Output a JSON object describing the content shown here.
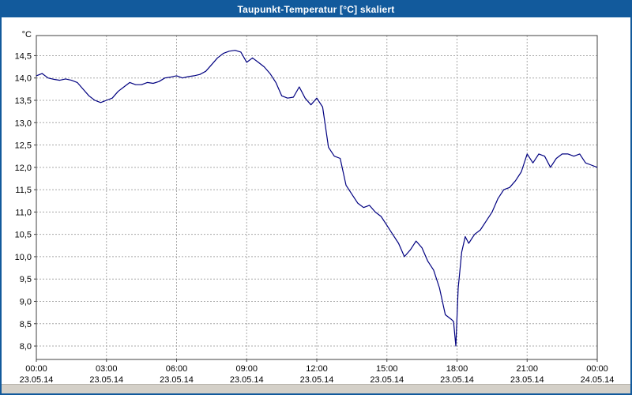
{
  "window": {
    "title": "Taupunkt-Temperatur [°C] skaliert"
  },
  "colors": {
    "frame": "#125A9C",
    "title_text": "#FFFFFF",
    "background": "#FFFFFF",
    "grid": "#A8A8A8",
    "axis": "#404040",
    "scrollbar": "#D4D0C8"
  },
  "chart_data": {
    "type": "line",
    "title": "Taupunkt-Temperatur [°C] skaliert",
    "xlabel": "",
    "ylabel": "°C",
    "unit_label": "°C",
    "grid": true,
    "legend": "none",
    "ylim": [
      7.7,
      14.95
    ],
    "xlim_hours": [
      0,
      24
    ],
    "y_ticks": [
      8,
      8.5,
      9,
      9.5,
      10,
      10.5,
      11,
      11.5,
      12,
      12.5,
      13,
      13.5,
      14,
      14.5
    ],
    "y_tick_labels": [
      "8,0",
      "8,5",
      "9,0",
      "9,5",
      "10,0",
      "10,5",
      "11,0",
      "11,5",
      "12,0",
      "12,5",
      "13,0",
      "13,5",
      "14,0",
      "14,5"
    ],
    "x_ticks": [
      {
        "h": 0,
        "time": "00:00",
        "date": "23.05.14"
      },
      {
        "h": 3,
        "time": "03:00",
        "date": "23.05.14"
      },
      {
        "h": 6,
        "time": "06:00",
        "date": "23.05.14"
      },
      {
        "h": 9,
        "time": "09:00",
        "date": "23.05.14"
      },
      {
        "h": 12,
        "time": "12:00",
        "date": "23.05.14"
      },
      {
        "h": 15,
        "time": "15:00",
        "date": "23.05.14"
      },
      {
        "h": 18,
        "time": "18:00",
        "date": "23.05.14"
      },
      {
        "h": 21,
        "time": "21:00",
        "date": "23.05.14"
      },
      {
        "h": 24,
        "time": "00:00",
        "date": "24.05.14"
      }
    ],
    "series": [
      {
        "name": "Taupunkt-Temperatur",
        "color": "#000080",
        "points": [
          [
            0.0,
            14.05
          ],
          [
            0.25,
            14.1
          ],
          [
            0.5,
            14.0
          ],
          [
            0.75,
            13.97
          ],
          [
            1.0,
            13.95
          ],
          [
            1.25,
            13.98
          ],
          [
            1.5,
            13.95
          ],
          [
            1.75,
            13.9
          ],
          [
            2.0,
            13.75
          ],
          [
            2.25,
            13.6
          ],
          [
            2.5,
            13.5
          ],
          [
            2.75,
            13.45
          ],
          [
            3.0,
            13.5
          ],
          [
            3.25,
            13.55
          ],
          [
            3.5,
            13.7
          ],
          [
            3.75,
            13.8
          ],
          [
            4.0,
            13.9
          ],
          [
            4.25,
            13.85
          ],
          [
            4.5,
            13.85
          ],
          [
            4.75,
            13.9
          ],
          [
            5.0,
            13.88
          ],
          [
            5.25,
            13.92
          ],
          [
            5.5,
            14.0
          ],
          [
            5.75,
            14.02
          ],
          [
            6.0,
            14.05
          ],
          [
            6.25,
            14.0
          ],
          [
            6.5,
            14.03
          ],
          [
            6.75,
            14.05
          ],
          [
            7.0,
            14.08
          ],
          [
            7.25,
            14.15
          ],
          [
            7.5,
            14.3
          ],
          [
            7.75,
            14.45
          ],
          [
            8.0,
            14.55
          ],
          [
            8.25,
            14.6
          ],
          [
            8.5,
            14.62
          ],
          [
            8.75,
            14.58
          ],
          [
            9.0,
            14.35
          ],
          [
            9.25,
            14.45
          ],
          [
            9.5,
            14.35
          ],
          [
            9.75,
            14.25
          ],
          [
            10.0,
            14.1
          ],
          [
            10.25,
            13.9
          ],
          [
            10.5,
            13.6
          ],
          [
            10.75,
            13.55
          ],
          [
            11.0,
            13.57
          ],
          [
            11.25,
            13.8
          ],
          [
            11.5,
            13.55
          ],
          [
            11.75,
            13.4
          ],
          [
            12.0,
            13.55
          ],
          [
            12.25,
            13.35
          ],
          [
            12.5,
            12.45
          ],
          [
            12.75,
            12.25
          ],
          [
            13.0,
            12.2
          ],
          [
            13.25,
            11.6
          ],
          [
            13.5,
            11.4
          ],
          [
            13.75,
            11.2
          ],
          [
            14.0,
            11.1
          ],
          [
            14.25,
            11.15
          ],
          [
            14.5,
            11.0
          ],
          [
            14.75,
            10.9
          ],
          [
            15.0,
            10.7
          ],
          [
            15.25,
            10.5
          ],
          [
            15.5,
            10.3
          ],
          [
            15.75,
            10.0
          ],
          [
            16.0,
            10.15
          ],
          [
            16.25,
            10.35
          ],
          [
            16.5,
            10.2
          ],
          [
            16.75,
            9.9
          ],
          [
            17.0,
            9.7
          ],
          [
            17.25,
            9.3
          ],
          [
            17.5,
            8.7
          ],
          [
            17.75,
            8.6
          ],
          [
            17.85,
            8.55
          ],
          [
            17.95,
            8.0
          ],
          [
            18.05,
            9.3
          ],
          [
            18.2,
            10.1
          ],
          [
            18.35,
            10.45
          ],
          [
            18.5,
            10.3
          ],
          [
            18.75,
            10.5
          ],
          [
            19.0,
            10.6
          ],
          [
            19.25,
            10.8
          ],
          [
            19.5,
            11.0
          ],
          [
            19.75,
            11.3
          ],
          [
            20.0,
            11.5
          ],
          [
            20.25,
            11.55
          ],
          [
            20.5,
            11.7
          ],
          [
            20.75,
            11.9
          ],
          [
            21.0,
            12.3
          ],
          [
            21.25,
            12.1
          ],
          [
            21.5,
            12.3
          ],
          [
            21.75,
            12.25
          ],
          [
            22.0,
            12.0
          ],
          [
            22.25,
            12.2
          ],
          [
            22.5,
            12.3
          ],
          [
            22.75,
            12.3
          ],
          [
            23.0,
            12.25
          ],
          [
            23.25,
            12.3
          ],
          [
            23.5,
            12.1
          ],
          [
            23.75,
            12.05
          ],
          [
            24.0,
            12.0
          ]
        ]
      }
    ]
  }
}
